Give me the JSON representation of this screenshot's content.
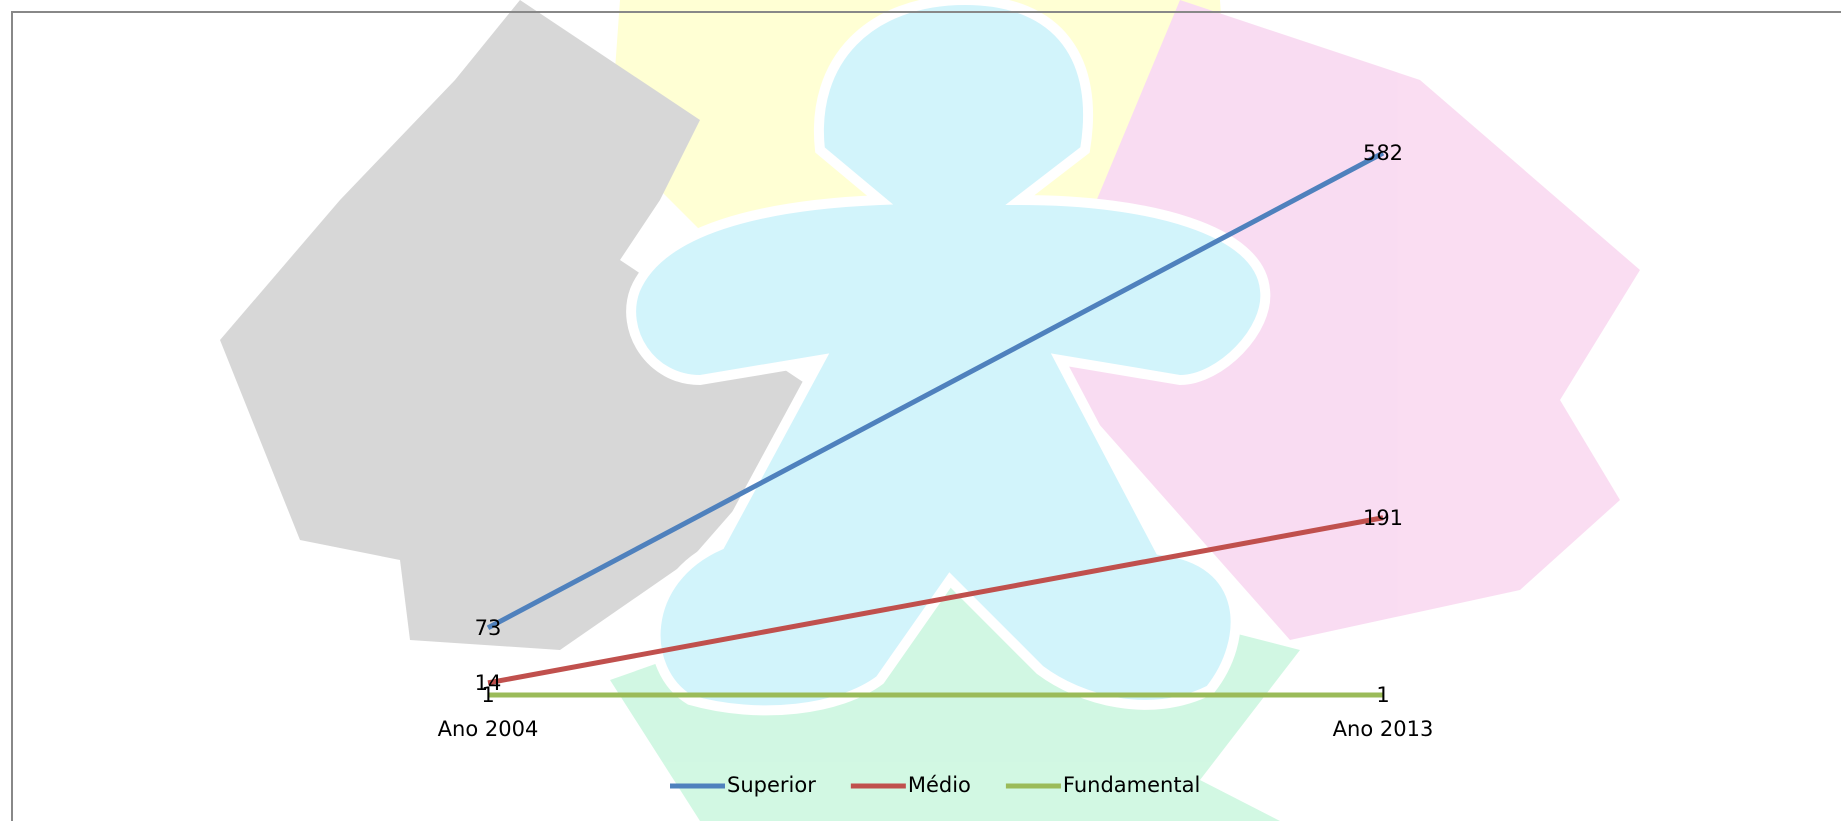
{
  "chart_data": {
    "type": "line",
    "categories": [
      "Ano 2004",
      "Ano 2013"
    ],
    "series": [
      {
        "name": "Superior",
        "color": "#4f81bd",
        "values": [
          73,
          582
        ]
      },
      {
        "name": "Médio",
        "color": "#c0504d",
        "values": [
          14,
          191
        ]
      },
      {
        "name": "Fundamental",
        "color": "#9bbb59",
        "values": [
          1,
          1
        ]
      }
    ],
    "legend": "bottom"
  }
}
